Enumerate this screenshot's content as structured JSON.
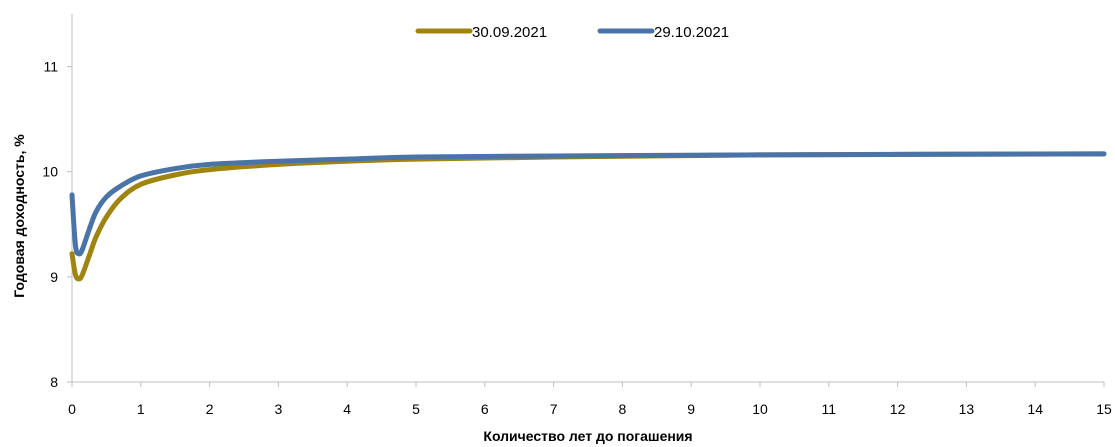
{
  "chart_data": {
    "type": "line",
    "xlabel": "Количество лет до погашения",
    "ylabel": "Годовая доходность, %",
    "xlim": [
      0,
      15
    ],
    "ylim": [
      8,
      11.5
    ],
    "xticks": [
      0,
      1,
      2,
      3,
      4,
      5,
      6,
      7,
      8,
      9,
      10,
      11,
      12,
      13,
      14,
      15
    ],
    "yticks": [
      8,
      9,
      10,
      11
    ],
    "grid": false,
    "legend_position": "top-center",
    "series": [
      {
        "name": "30.09.2021",
        "color": "#A08410",
        "x": [
          0,
          0.05,
          0.1,
          0.15,
          0.25,
          0.35,
          0.5,
          0.7,
          1,
          1.5,
          2,
          3,
          4,
          5,
          7,
          10,
          15
        ],
        "values": [
          9.22,
          9.02,
          8.98,
          9.02,
          9.2,
          9.38,
          9.57,
          9.74,
          9.88,
          9.97,
          10.02,
          10.07,
          10.1,
          10.12,
          10.14,
          10.16,
          10.17
        ]
      },
      {
        "name": "29.10.2021",
        "color": "#4A73A8",
        "x": [
          0,
          0.05,
          0.1,
          0.15,
          0.25,
          0.35,
          0.5,
          0.7,
          1,
          1.5,
          2,
          3,
          4,
          5,
          7,
          10,
          15
        ],
        "values": [
          9.78,
          9.3,
          9.22,
          9.26,
          9.45,
          9.62,
          9.76,
          9.86,
          9.96,
          10.03,
          10.07,
          10.1,
          10.12,
          10.14,
          10.15,
          10.16,
          10.17
        ]
      }
    ]
  }
}
